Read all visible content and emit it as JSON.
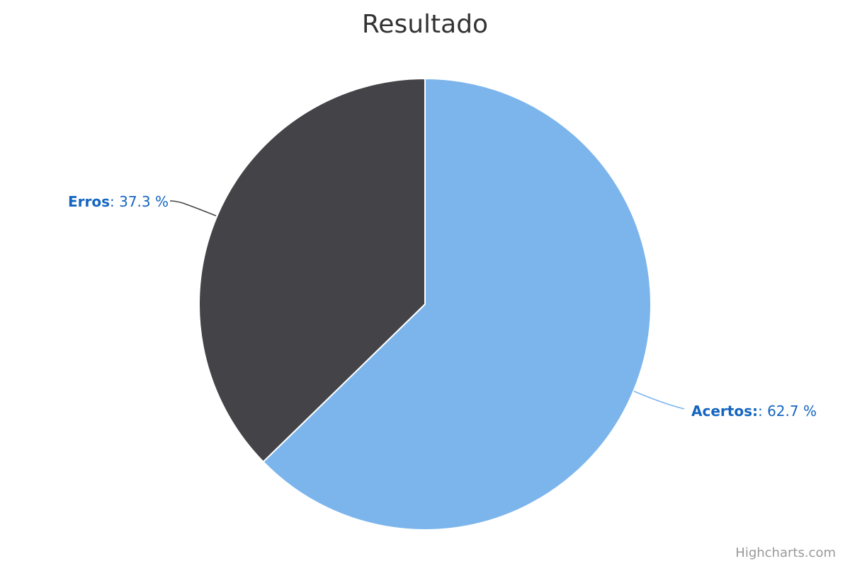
{
  "chart_data": {
    "type": "pie",
    "title": "Resultado",
    "slices": [
      {
        "name": "Acertos:",
        "value": 62.7,
        "color": "#7cb5ec",
        "label_suffix": ": 62.7 %"
      },
      {
        "name": "Erros",
        "value": 37.3,
        "color": "#434348",
        "label_suffix": ": 37.3 %"
      }
    ],
    "label_color": "#1565c0",
    "start_angle": "top (12 o'clock), clockwise"
  },
  "credits": "Highcharts.com"
}
